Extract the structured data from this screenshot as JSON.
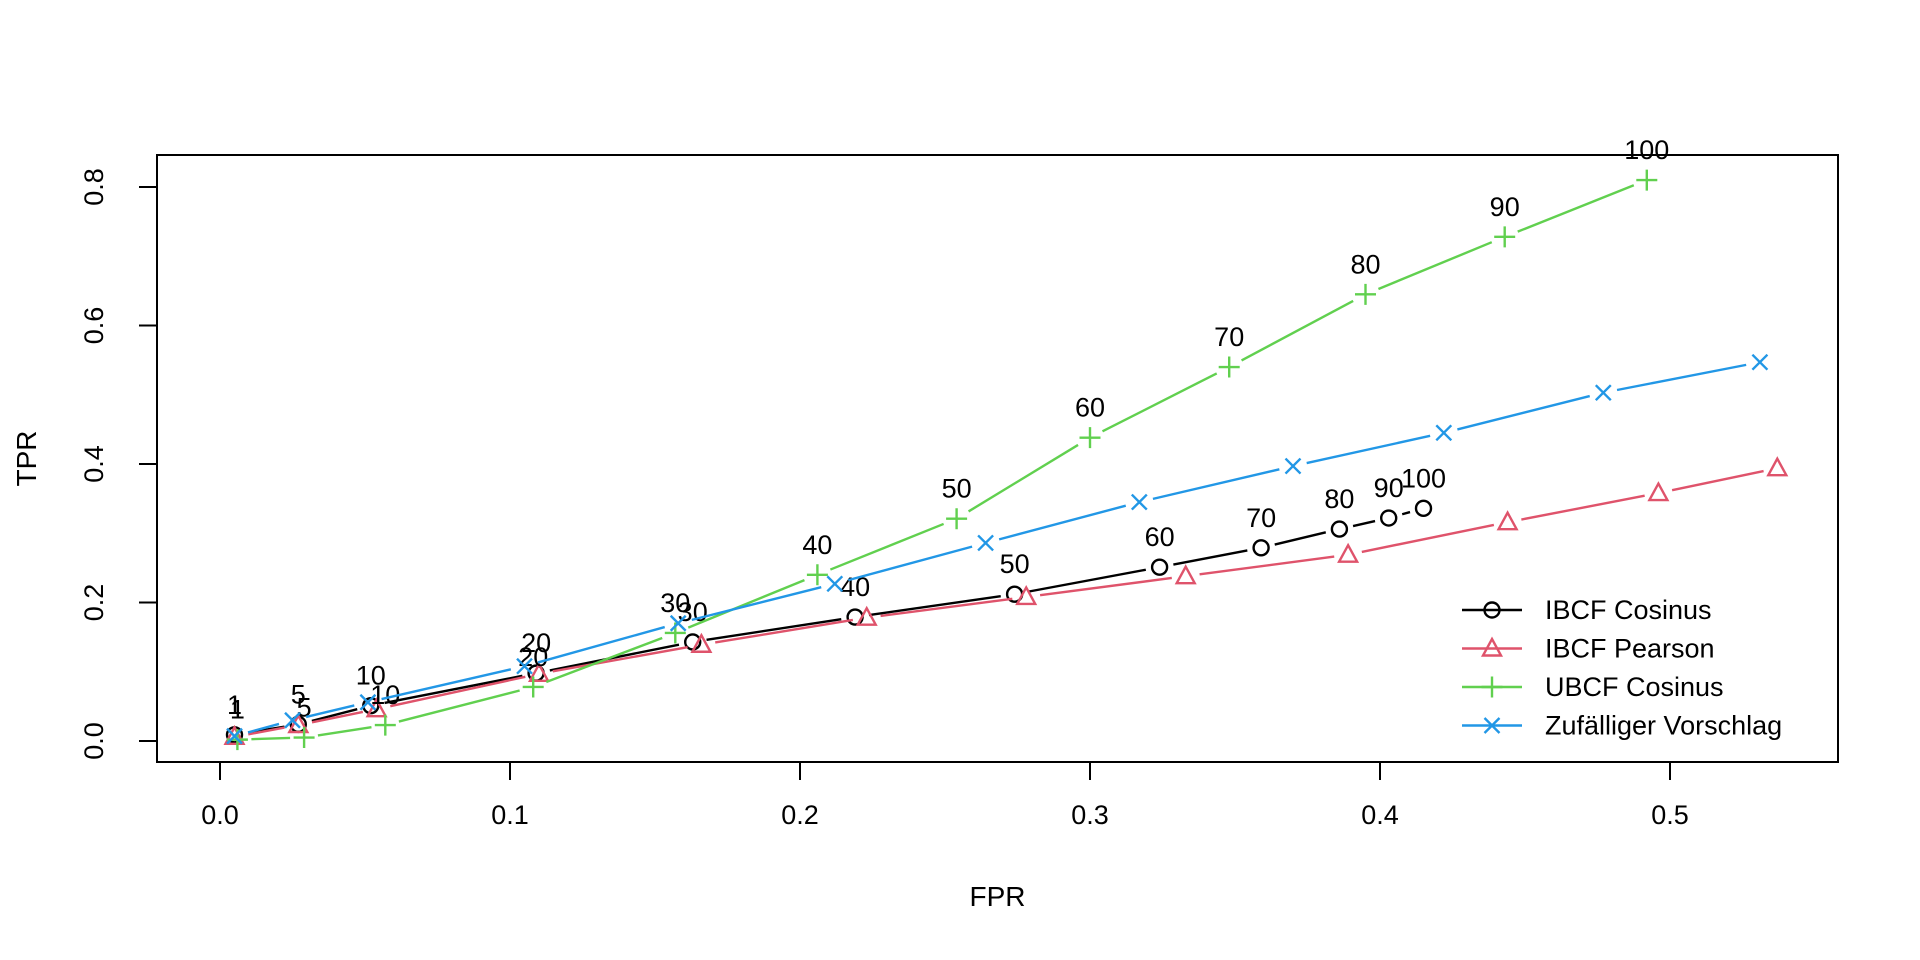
{
  "chart_data": {
    "type": "line",
    "title": "",
    "xlabel": "FPR",
    "ylabel": "TPR",
    "x_ticks": [
      0.0,
      0.1,
      0.2,
      0.3,
      0.4,
      0.5
    ],
    "y_ticks": [
      0.0,
      0.2,
      0.4,
      0.6,
      0.8
    ],
    "xlim": [
      -0.02,
      0.56
    ],
    "ylim": [
      -0.03,
      0.84
    ],
    "grid": false,
    "legend_position": "inside-bottom-right",
    "point_label_color": "#000000",
    "n_values": [
      1,
      5,
      10,
      20,
      30,
      40,
      50,
      60,
      70,
      80,
      90,
      100
    ],
    "series": [
      {
        "name": "IBCF Cosinus",
        "color": "#000000",
        "marker": "circle",
        "labeled": true,
        "fpr": [
          0.005,
          0.027,
          0.052,
          0.109,
          0.163,
          0.219,
          0.274,
          0.324,
          0.359,
          0.386,
          0.403,
          0.415
        ],
        "tpr": [
          0.009,
          0.024,
          0.051,
          0.098,
          0.143,
          0.179,
          0.212,
          0.251,
          0.279,
          0.306,
          0.322,
          0.336
        ]
      },
      {
        "name": "IBCF Pearson",
        "color": "#DF536B",
        "marker": "triangle",
        "labeled": false,
        "fpr": [
          0.005,
          0.027,
          0.054,
          0.11,
          0.166,
          0.223,
          0.278,
          0.333,
          0.389,
          0.444,
          0.496,
          0.537
        ],
        "tpr": [
          0.006,
          0.023,
          0.046,
          0.097,
          0.139,
          0.178,
          0.208,
          0.238,
          0.269,
          0.316,
          0.358,
          0.394
        ]
      },
      {
        "name": "UBCF Cosinus",
        "color": "#61D04F",
        "marker": "plus",
        "labeled": true,
        "fpr": [
          0.006,
          0.029,
          0.057,
          0.108,
          0.157,
          0.206,
          0.254,
          0.3,
          0.348,
          0.395,
          0.443,
          0.492
        ],
        "tpr": [
          0.002,
          0.005,
          0.023,
          0.078,
          0.156,
          0.24,
          0.321,
          0.438,
          0.54,
          0.645,
          0.728,
          0.81
        ]
      },
      {
        "name": "Zufälliger Vorschlag",
        "color": "#2297E6",
        "marker": "x",
        "labeled": false,
        "fpr": [
          0.005,
          0.025,
          0.051,
          0.105,
          0.158,
          0.212,
          0.264,
          0.317,
          0.37,
          0.422,
          0.477,
          0.531
        ],
        "tpr": [
          0.007,
          0.03,
          0.056,
          0.108,
          0.17,
          0.227,
          0.286,
          0.345,
          0.397,
          0.445,
          0.503,
          0.547
        ]
      }
    ]
  }
}
